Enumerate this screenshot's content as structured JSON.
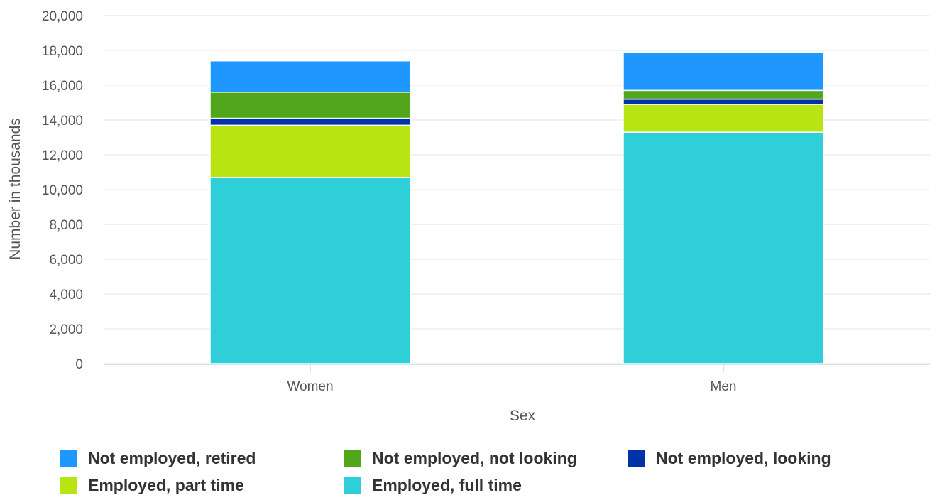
{
  "chart_data": {
    "type": "bar",
    "stacked": true,
    "categories": [
      "Women",
      "Men"
    ],
    "xlabel": "Sex",
    "ylabel": "Number in thousands",
    "ylim": [
      0,
      20000
    ],
    "yticks": [
      0,
      2000,
      4000,
      6000,
      8000,
      10000,
      12000,
      14000,
      16000,
      18000,
      20000
    ],
    "ytick_labels": [
      "0",
      "2,000",
      "4,000",
      "6,000",
      "8,000",
      "10,000",
      "12,000",
      "14,000",
      "16,000",
      "18,000",
      "20,000"
    ],
    "grid": true,
    "legend_position": "bottom",
    "series": [
      {
        "name": "Employed, full time",
        "color": "#2ecfd8",
        "values": [
          10700,
          13300
        ]
      },
      {
        "name": "Employed, part time",
        "color": "#b9e414",
        "values": [
          3000,
          1600
        ]
      },
      {
        "name": "Not employed, looking",
        "color": "#0033aa",
        "values": [
          400,
          300
        ]
      },
      {
        "name": "Not employed, not looking",
        "color": "#52a61c",
        "values": [
          1500,
          500
        ]
      },
      {
        "name": "Not employed, retired",
        "color": "#1e97ff",
        "values": [
          1800,
          2200
        ]
      }
    ]
  },
  "legend": {
    "items": [
      {
        "label": "Not employed, retired",
        "color": "#1e97ff"
      },
      {
        "label": "Not employed, not looking",
        "color": "#52a61c"
      },
      {
        "label": "Not employed, looking",
        "color": "#0033aa"
      },
      {
        "label": "Employed, part time",
        "color": "#b9e414"
      },
      {
        "label": "Employed, full time",
        "color": "#2ecfd8"
      }
    ]
  }
}
